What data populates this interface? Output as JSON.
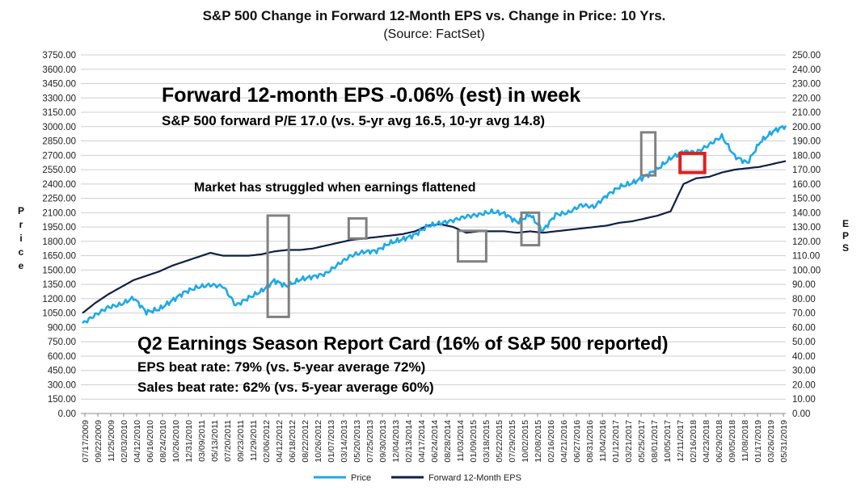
{
  "chart_data": {
    "type": "line",
    "title": "S&P 500 Change in Forward 12-Month EPS vs. Change in Price: 10 Yrs.",
    "subtitle": "(Source: FactSet)",
    "ylabel_left": "Price",
    "ylabel_right": "EPS",
    "ylim_left": [
      0,
      3750
    ],
    "ylim_right": [
      0,
      250
    ],
    "y_ticks_left": [
      "0.00",
      "150.00",
      "300.00",
      "450.00",
      "600.00",
      "750.00",
      "900.00",
      "1050.00",
      "1200.00",
      "1350.00",
      "1500.00",
      "1650.00",
      "1800.00",
      "1950.00",
      "2100.00",
      "2250.00",
      "2400.00",
      "2550.00",
      "2700.00",
      "2850.00",
      "3000.00",
      "3150.00",
      "3300.00",
      "3450.00",
      "3600.00",
      "3750.00"
    ],
    "y_ticks_right": [
      "0.00",
      "10.00",
      "20.00",
      "30.00",
      "40.00",
      "50.00",
      "60.00",
      "70.00",
      "80.00",
      "90.00",
      "100.00",
      "110.00",
      "120.00",
      "130.00",
      "140.00",
      "150.00",
      "160.00",
      "170.00",
      "180.00",
      "190.00",
      "200.00",
      "210.00",
      "220.00",
      "230.00",
      "240.00",
      "250.00"
    ],
    "x_tick_labels": [
      "07/17/2009",
      "09/22/2009",
      "11/25/2009",
      "02/03/2010",
      "04/12/2010",
      "06/16/2010",
      "08/24/2010",
      "10/26/2010",
      "12/31/2010",
      "03/09/2011",
      "05/13/2011",
      "07/20/2011",
      "09/23/2011",
      "11/29/2011",
      "02/06/2012",
      "04/12/2012",
      "06/18/2012",
      "08/22/2012",
      "10/26/2012",
      "01/07/2013",
      "03/14/2013",
      "05/20/2013",
      "07/25/2013",
      "09/30/2013",
      "12/04/2013",
      "02/13/2014",
      "04/17/2014",
      "06/24/2014",
      "08/28/2014",
      "11/03/2014",
      "01/09/2015",
      "03/18/2015",
      "05/22/2015",
      "07/29/2015",
      "10/02/2015",
      "12/08/2015",
      "02/16/2016",
      "04/21/2016",
      "06/27/2016",
      "08/31/2016",
      "11/04/2016",
      "01/12/2017",
      "03/21/2017",
      "05/25/2017",
      "08/01/2017",
      "10/05/2017",
      "12/11/2017",
      "02/16/2018",
      "04/23/2018",
      "06/29/2018",
      "09/05/2018",
      "11/08/2018",
      "01/17/2019",
      "03/26/2019",
      "05/31/2019"
    ],
    "series": [
      {
        "name": "Price",
        "axis": "left",
        "color": "#1ea9e6",
        "values": [
          940,
          1030,
          1110,
          1140,
          1210,
          1060,
          1090,
          1180,
          1270,
          1320,
          1345,
          1330,
          1130,
          1210,
          1280,
          1390,
          1330,
          1400,
          1430,
          1460,
          1560,
          1650,
          1690,
          1700,
          1780,
          1820,
          1870,
          1960,
          1990,
          2020,
          2060,
          2080,
          2110,
          2090,
          2000,
          2080,
          1910,
          2080,
          2100,
          2180,
          2160,
          2280,
          2370,
          2410,
          2480,
          2560,
          2670,
          2740,
          2730,
          2810,
          2900,
          2690,
          2620,
          2840,
          2950,
          3010
        ]
      },
      {
        "name": "Forward 12-Month EPS",
        "axis": "right",
        "color": "#0f1f45",
        "values": [
          70,
          77,
          83,
          88,
          93,
          96,
          99,
          103,
          106,
          109,
          112,
          110,
          110,
          110,
          111,
          113,
          114,
          114,
          115,
          117,
          119,
          121,
          122,
          123,
          124,
          125,
          127,
          131,
          132,
          130,
          126,
          127,
          127,
          127,
          126,
          127,
          126,
          127,
          128,
          129,
          130,
          131,
          133,
          134,
          136,
          138,
          141,
          160,
          164,
          165,
          168,
          170,
          171,
          172,
          174,
          176
        ]
      }
    ],
    "annotations": {
      "eps_week": "Forward 12-month EPS -0.06% (est) in week",
      "forward_pe": "S&P 500 forward P/E 17.0 (vs. 5-yr avg 16.5, 10-yr avg 14.8)",
      "market_note": "Market has struggled when earnings flattened",
      "q2_title": "Q2 Earnings Season Report Card (16% of S&P 500 reported)",
      "eps_beat": "EPS beat rate: 79% (vs. 5-year average 72%)",
      "sales_beat": "Sales beat rate: 62% (vs. 5-year average 60%)"
    },
    "highlight_ranges": [
      {
        "x_from": 26.5,
        "x_to": 29.5,
        "y_from": 1010,
        "y_to": 2070,
        "color": "#808080"
      },
      {
        "x_from": 38.0,
        "x_to": 40.5,
        "y_from": 1830,
        "y_to": 2040,
        "color": "#808080"
      },
      {
        "x_from": 53.5,
        "x_to": 57.5,
        "y_from": 1590,
        "y_to": 1910,
        "color": "#808080"
      },
      {
        "x_from": 62.5,
        "x_to": 65.0,
        "y_from": 1760,
        "y_to": 2100,
        "color": "#808080"
      },
      {
        "x_from": 79.5,
        "x_to": 81.5,
        "y_from": 2490,
        "y_to": 2940,
        "color": "#808080"
      },
      {
        "x_from": 85.0,
        "x_to": 88.5,
        "y_from": 2520,
        "y_to": 2720,
        "color": "#e02020"
      }
    ],
    "legend": [
      "Price",
      "Forward 12-Month EPS"
    ],
    "legend_position": "bottom"
  }
}
